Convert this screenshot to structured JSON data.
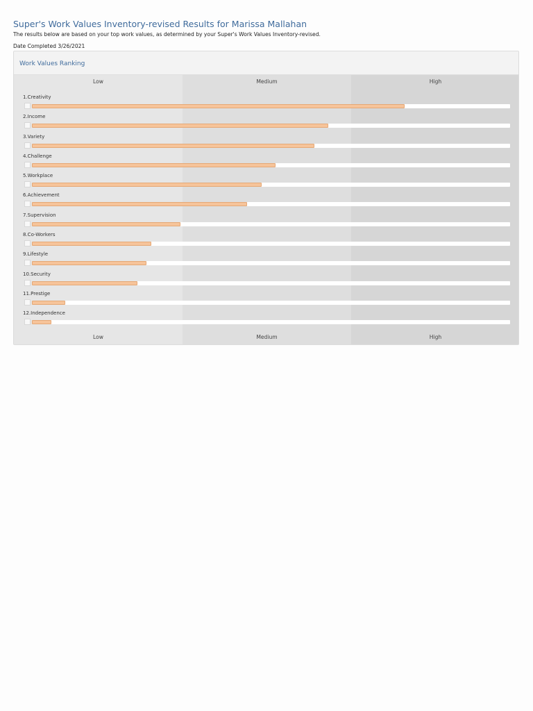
{
  "page": {
    "title": "Super's Work Values Inventory-revised Results for Marissa Mallahan",
    "subtitle": "The results below are based on your top work values, as determined by your Super's Work Values Inventory-revised.",
    "date_completed": "Date Completed 3/26/2021"
  },
  "panel": {
    "title": "Work Values Ranking",
    "scale": [
      "Low",
      "Medium",
      "High"
    ]
  },
  "colors": {
    "accent_text": "#3f6b9c",
    "bar_fill": "#f6c49a",
    "bar_track": "#ffffff"
  },
  "values": [
    {
      "label": "1.Creativity",
      "score": 0.78
    },
    {
      "label": "2.Income",
      "score": 0.62
    },
    {
      "label": "3.Variety",
      "score": 0.59
    },
    {
      "label": "4.Challenge",
      "score": 0.51
    },
    {
      "label": "5.Workplace",
      "score": 0.48
    },
    {
      "label": "6.Achievement",
      "score": 0.45
    },
    {
      "label": "7.Supervision",
      "score": 0.31
    },
    {
      "label": "8.Co-Workers",
      "score": 0.25
    },
    {
      "label": "9.Lifestyle",
      "score": 0.24
    },
    {
      "label": "10.Security",
      "score": 0.22
    },
    {
      "label": "11.Prestige",
      "score": 0.07
    },
    {
      "label": "12.Independence",
      "score": 0.04
    }
  ]
}
